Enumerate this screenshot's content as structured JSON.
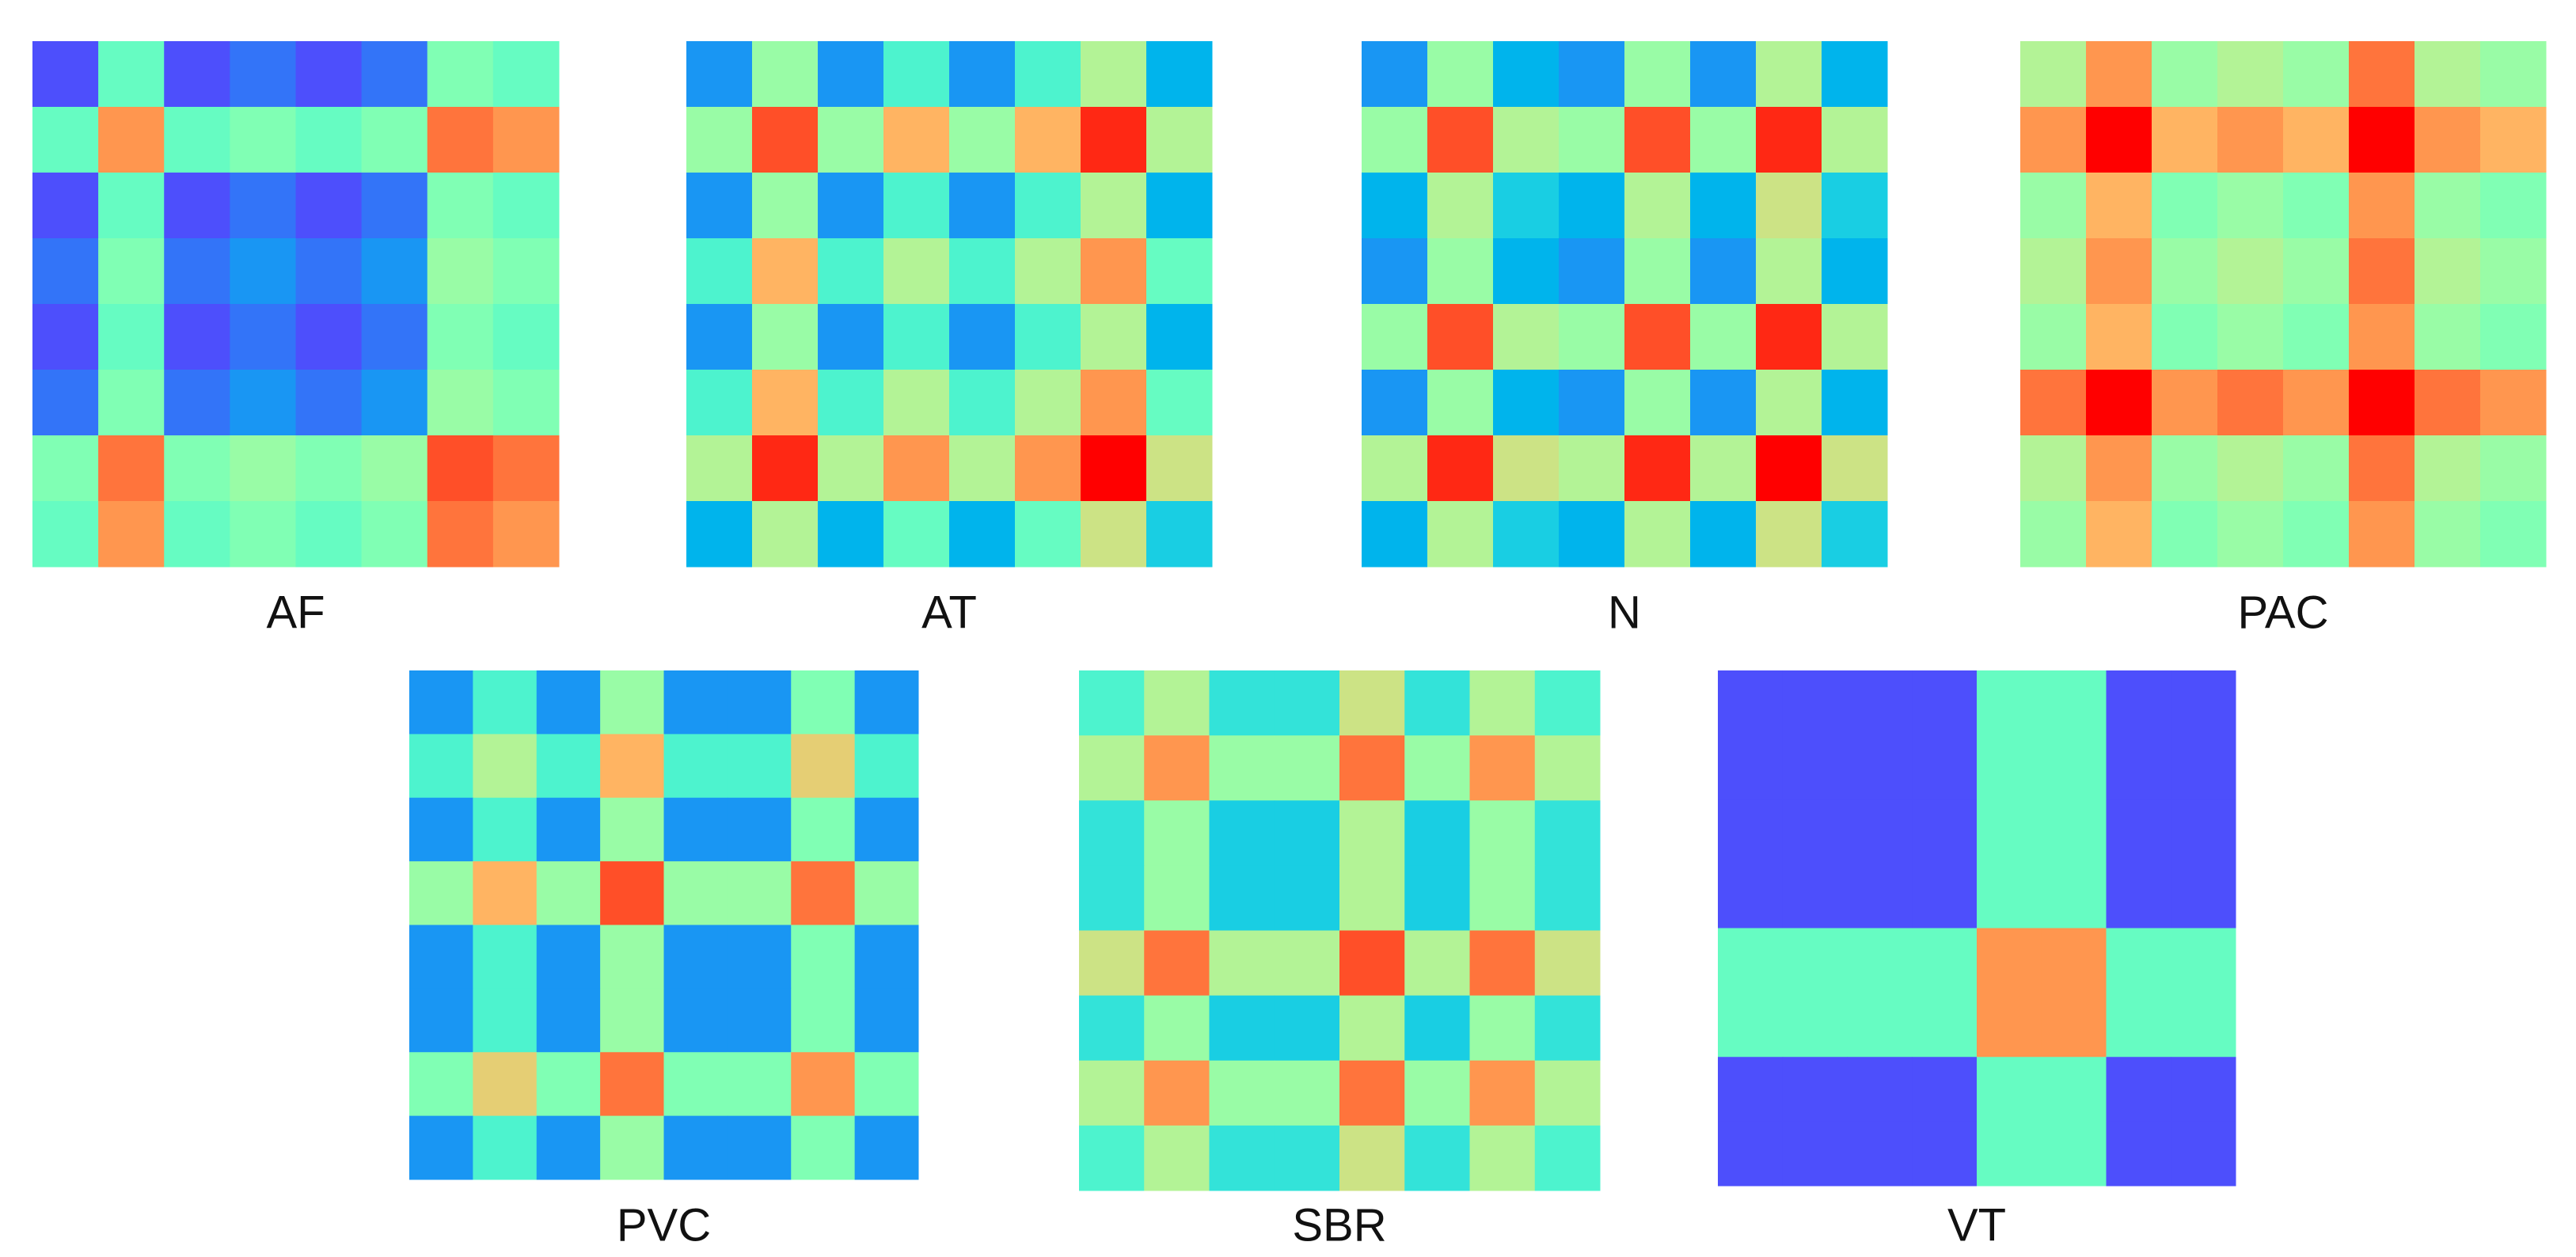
{
  "chart_data": [
    {
      "type": "heatmap",
      "title": "AF",
      "colormap": "rainbow",
      "values": [
        [
          0.1,
          0.45,
          0.1,
          0.15,
          0.1,
          0.15,
          0.5,
          0.45
        ],
        [
          0.45,
          0.8,
          0.45,
          0.5,
          0.45,
          0.5,
          0.85,
          0.8
        ],
        [
          0.1,
          0.45,
          0.1,
          0.15,
          0.1,
          0.15,
          0.5,
          0.45
        ],
        [
          0.15,
          0.5,
          0.15,
          0.2,
          0.15,
          0.2,
          0.55,
          0.5
        ],
        [
          0.1,
          0.45,
          0.1,
          0.15,
          0.1,
          0.15,
          0.5,
          0.45
        ],
        [
          0.15,
          0.5,
          0.15,
          0.2,
          0.15,
          0.2,
          0.55,
          0.5
        ],
        [
          0.5,
          0.85,
          0.5,
          0.55,
          0.5,
          0.55,
          0.9,
          0.85
        ],
        [
          0.45,
          0.8,
          0.45,
          0.5,
          0.45,
          0.5,
          0.85,
          0.8
        ]
      ]
    },
    {
      "type": "heatmap",
      "title": "AT",
      "colormap": "rainbow",
      "values": [
        [
          0.2,
          0.55,
          0.2,
          0.4,
          0.2,
          0.4,
          0.6,
          0.25
        ],
        [
          0.55,
          0.9,
          0.55,
          0.75,
          0.55,
          0.75,
          0.95,
          0.6
        ],
        [
          0.2,
          0.55,
          0.2,
          0.4,
          0.2,
          0.4,
          0.6,
          0.25
        ],
        [
          0.4,
          0.75,
          0.4,
          0.6,
          0.4,
          0.6,
          0.8,
          0.45
        ],
        [
          0.2,
          0.55,
          0.2,
          0.4,
          0.2,
          0.4,
          0.6,
          0.25
        ],
        [
          0.4,
          0.75,
          0.4,
          0.6,
          0.4,
          0.6,
          0.8,
          0.45
        ],
        [
          0.6,
          0.95,
          0.6,
          0.8,
          0.6,
          0.8,
          1,
          0.65
        ],
        [
          0.25,
          0.6,
          0.25,
          0.45,
          0.25,
          0.45,
          0.65,
          0.3
        ]
      ]
    },
    {
      "type": "heatmap",
      "title": "N",
      "colormap": "rainbow",
      "values": [
        [
          0.2,
          0.55,
          0.25,
          0.2,
          0.55,
          0.2,
          0.6,
          0.25
        ],
        [
          0.55,
          0.9,
          0.6,
          0.55,
          0.9,
          0.55,
          0.95,
          0.6
        ],
        [
          0.25,
          0.6,
          0.3,
          0.25,
          0.6,
          0.25,
          0.65,
          0.3
        ],
        [
          0.2,
          0.55,
          0.25,
          0.2,
          0.55,
          0.2,
          0.6,
          0.25
        ],
        [
          0.55,
          0.9,
          0.6,
          0.55,
          0.9,
          0.55,
          0.95,
          0.6
        ],
        [
          0.2,
          0.55,
          0.25,
          0.2,
          0.55,
          0.2,
          0.6,
          0.25
        ],
        [
          0.6,
          0.95,
          0.65,
          0.6,
          0.95,
          0.6,
          1,
          0.65
        ],
        [
          0.25,
          0.6,
          0.3,
          0.25,
          0.6,
          0.25,
          0.65,
          0.3
        ]
      ]
    },
    {
      "type": "heatmap",
      "title": "PAC",
      "colormap": "rainbow",
      "values": [
        [
          0.6,
          0.8,
          0.55,
          0.6,
          0.55,
          0.85,
          0.6,
          0.55
        ],
        [
          0.8,
          1,
          0.75,
          0.8,
          0.75,
          1,
          0.8,
          0.75
        ],
        [
          0.55,
          0.75,
          0.5,
          0.55,
          0.5,
          0.8,
          0.55,
          0.5
        ],
        [
          0.6,
          0.8,
          0.55,
          0.6,
          0.55,
          0.85,
          0.6,
          0.55
        ],
        [
          0.55,
          0.75,
          0.5,
          0.55,
          0.5,
          0.8,
          0.55,
          0.5
        ],
        [
          0.85,
          1,
          0.8,
          0.85,
          0.8,
          1,
          0.85,
          0.8
        ],
        [
          0.6,
          0.8,
          0.55,
          0.6,
          0.55,
          0.85,
          0.6,
          0.55
        ],
        [
          0.55,
          0.75,
          0.5,
          0.55,
          0.5,
          0.8,
          0.55,
          0.5
        ]
      ]
    },
    {
      "type": "heatmap",
      "title": "PVC",
      "colormap": "rainbow",
      "values": [
        [
          0.2,
          0.4,
          0.2,
          0.55,
          0.2,
          0.2,
          0.5,
          0.2
        ],
        [
          0.4,
          0.6,
          0.4,
          0.75,
          0.4,
          0.4,
          0.7,
          0.4
        ],
        [
          0.2,
          0.4,
          0.2,
          0.55,
          0.2,
          0.2,
          0.5,
          0.2
        ],
        [
          0.55,
          0.75,
          0.55,
          0.9,
          0.55,
          0.55,
          0.85,
          0.55
        ],
        [
          0.2,
          0.4,
          0.2,
          0.55,
          0.2,
          0.2,
          0.5,
          0.2
        ],
        [
          0.2,
          0.4,
          0.2,
          0.55,
          0.2,
          0.2,
          0.5,
          0.2
        ],
        [
          0.5,
          0.7,
          0.5,
          0.85,
          0.5,
          0.5,
          0.8,
          0.5
        ],
        [
          0.2,
          0.4,
          0.2,
          0.55,
          0.2,
          0.2,
          0.5,
          0.2
        ]
      ]
    },
    {
      "type": "heatmap",
      "title": "SBR",
      "colormap": "rainbow",
      "values": [
        [
          0.4,
          0.6,
          0.35,
          0.35,
          0.65,
          0.35,
          0.6,
          0.4
        ],
        [
          0.6,
          0.8,
          0.55,
          0.55,
          0.85,
          0.55,
          0.8,
          0.6
        ],
        [
          0.35,
          0.55,
          0.3,
          0.3,
          0.6,
          0.3,
          0.55,
          0.35
        ],
        [
          0.35,
          0.55,
          0.3,
          0.3,
          0.6,
          0.3,
          0.55,
          0.35
        ],
        [
          0.65,
          0.85,
          0.6,
          0.6,
          0.9,
          0.6,
          0.85,
          0.65
        ],
        [
          0.35,
          0.55,
          0.3,
          0.3,
          0.6,
          0.3,
          0.55,
          0.35
        ],
        [
          0.6,
          0.8,
          0.55,
          0.55,
          0.85,
          0.55,
          0.8,
          0.6
        ],
        [
          0.4,
          0.6,
          0.35,
          0.35,
          0.65,
          0.35,
          0.6,
          0.4
        ]
      ]
    },
    {
      "type": "heatmap",
      "title": "VT",
      "colormap": "rainbow",
      "values": [
        [
          0.1,
          0.1,
          0.1,
          0.1,
          0.45,
          0.45,
          0.1,
          0.1
        ],
        [
          0.1,
          0.1,
          0.1,
          0.1,
          0.45,
          0.45,
          0.1,
          0.1
        ],
        [
          0.1,
          0.1,
          0.1,
          0.1,
          0.45,
          0.45,
          0.1,
          0.1
        ],
        [
          0.1,
          0.1,
          0.1,
          0.1,
          0.45,
          0.45,
          0.1,
          0.1
        ],
        [
          0.45,
          0.45,
          0.45,
          0.45,
          0.8,
          0.8,
          0.45,
          0.45
        ],
        [
          0.45,
          0.45,
          0.45,
          0.45,
          0.8,
          0.8,
          0.45,
          0.45
        ],
        [
          0.1,
          0.1,
          0.1,
          0.1,
          0.45,
          0.45,
          0.1,
          0.1
        ],
        [
          0.1,
          0.1,
          0.1,
          0.1,
          0.45,
          0.45,
          0.1,
          0.1
        ]
      ]
    }
  ]
}
